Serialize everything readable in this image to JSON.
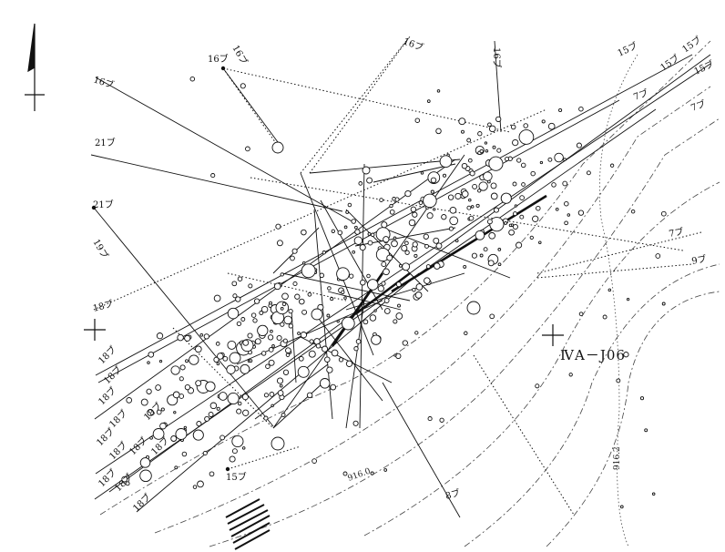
{
  "grid": {
    "label": "ⅣA－J06"
  },
  "contours": [
    {
      "label": "916.0"
    },
    {
      "label": "916.2"
    }
  ],
  "labels": [
    "16ブ",
    "16ブ",
    "16ブ",
    "16ブ",
    "21ブ",
    "16ブ",
    "21ブ",
    "19ブ",
    "18ブ",
    "18ブ",
    "18ブ",
    "18ブ",
    "18ブ",
    "18ブ",
    "18ブ",
    "18ブ",
    "18ブ",
    "18ブ",
    "18ブ",
    "18ブ",
    "18ブ",
    "15ブ",
    "15ブ",
    "15ブ",
    "15ブ",
    "15ブ",
    "7ブ",
    "7ブ",
    "7ブ",
    "9ブ",
    "8ブ"
  ],
  "colors": {
    "ink": "#111111",
    "paper": "#ffffff",
    "contour": "#444444"
  },
  "icons": [
    "north-arrow-icon",
    "grid-cross-icon"
  ]
}
